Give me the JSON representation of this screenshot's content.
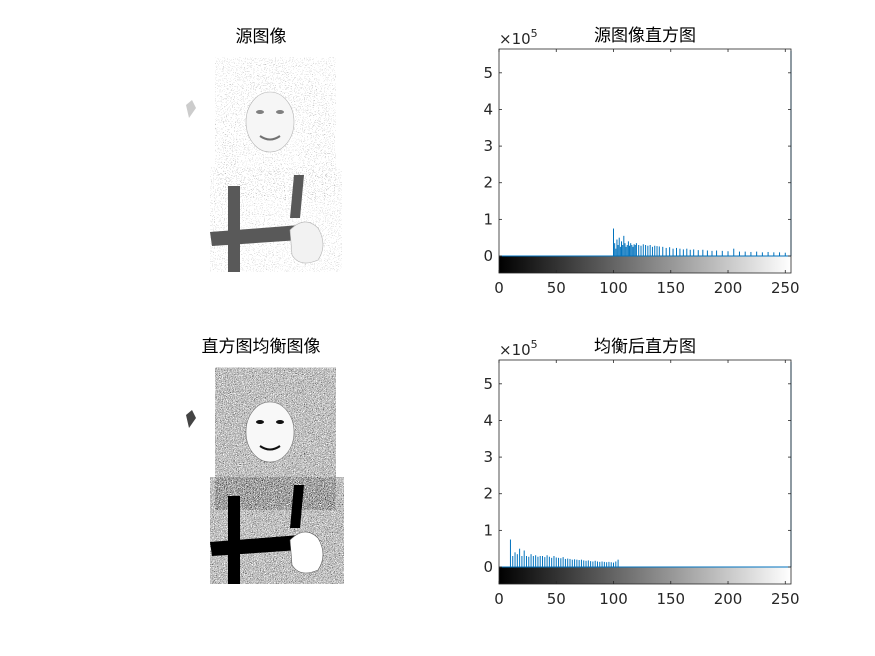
{
  "panels": {
    "source_image_title": "源图像",
    "equalized_image_title": "直方图均衡图像"
  },
  "chart_data": [
    {
      "type": "bar",
      "title": "源图像直方图",
      "y_exponent": "×10",
      "y_exponent_power": "5",
      "xlim": [
        0,
        255
      ],
      "ylim": [
        -0.4,
        5.65
      ],
      "xticks": [
        "0",
        "50",
        "100",
        "150",
        "200",
        "250"
      ],
      "yticks": [
        "0",
        "1",
        "2",
        "3",
        "4",
        "5"
      ],
      "bar_color": "#0072BD",
      "x": [
        100,
        101,
        102,
        103,
        104,
        105,
        106,
        107,
        108,
        109,
        110,
        111,
        112,
        113,
        114,
        115,
        116,
        117,
        118,
        119,
        120,
        122,
        124,
        126,
        128,
        130,
        132,
        134,
        136,
        138,
        140,
        143,
        146,
        149,
        152,
        155,
        158,
        161,
        164,
        167,
        170,
        174,
        178,
        182,
        186,
        190,
        195,
        200,
        205,
        210,
        215,
        220,
        225,
        230,
        235,
        240,
        245,
        250,
        255
      ],
      "values": [
        0.75,
        0.35,
        0.2,
        0.45,
        0.3,
        0.5,
        0.25,
        0.4,
        0.3,
        0.55,
        0.35,
        0.25,
        0.3,
        0.4,
        0.28,
        0.35,
        0.3,
        0.25,
        0.32,
        0.3,
        0.35,
        0.3,
        0.28,
        0.32,
        0.3,
        0.28,
        0.3,
        0.25,
        0.28,
        0.27,
        0.26,
        0.25,
        0.22,
        0.24,
        0.2,
        0.22,
        0.2,
        0.18,
        0.2,
        0.17,
        0.18,
        0.16,
        0.17,
        0.15,
        0.14,
        0.15,
        0.14,
        0.13,
        0.2,
        0.12,
        0.12,
        0.11,
        0.12,
        0.1,
        0.11,
        0.1,
        0.1,
        0.09,
        5.6
      ]
    },
    {
      "type": "bar",
      "title": "均衡后直方图",
      "y_exponent": "×10",
      "y_exponent_power": "5",
      "xlim": [
        0,
        255
      ],
      "ylim": [
        -0.4,
        5.65
      ],
      "xticks": [
        "0",
        "50",
        "100",
        "150",
        "200",
        "250"
      ],
      "yticks": [
        "0",
        "1",
        "2",
        "3",
        "4",
        "5"
      ],
      "bar_color": "#0072BD",
      "x": [
        10,
        12,
        14,
        16,
        18,
        20,
        22,
        24,
        26,
        28,
        30,
        32,
        34,
        36,
        38,
        40,
        42,
        44,
        46,
        48,
        50,
        52,
        54,
        56,
        58,
        60,
        62,
        64,
        66,
        68,
        70,
        72,
        74,
        76,
        78,
        80,
        82,
        84,
        86,
        88,
        90,
        92,
        94,
        96,
        98,
        100,
        102,
        104,
        255
      ],
      "values": [
        0.75,
        0.3,
        0.4,
        0.35,
        0.5,
        0.3,
        0.45,
        0.3,
        0.28,
        0.35,
        0.3,
        0.32,
        0.28,
        0.3,
        0.3,
        0.27,
        0.32,
        0.28,
        0.25,
        0.3,
        0.26,
        0.25,
        0.24,
        0.27,
        0.22,
        0.23,
        0.22,
        0.2,
        0.21,
        0.2,
        0.19,
        0.2,
        0.18,
        0.17,
        0.18,
        0.16,
        0.15,
        0.17,
        0.15,
        0.14,
        0.15,
        0.14,
        0.13,
        0.14,
        0.13,
        0.12,
        0.15,
        0.2,
        5.6
      ]
    }
  ]
}
